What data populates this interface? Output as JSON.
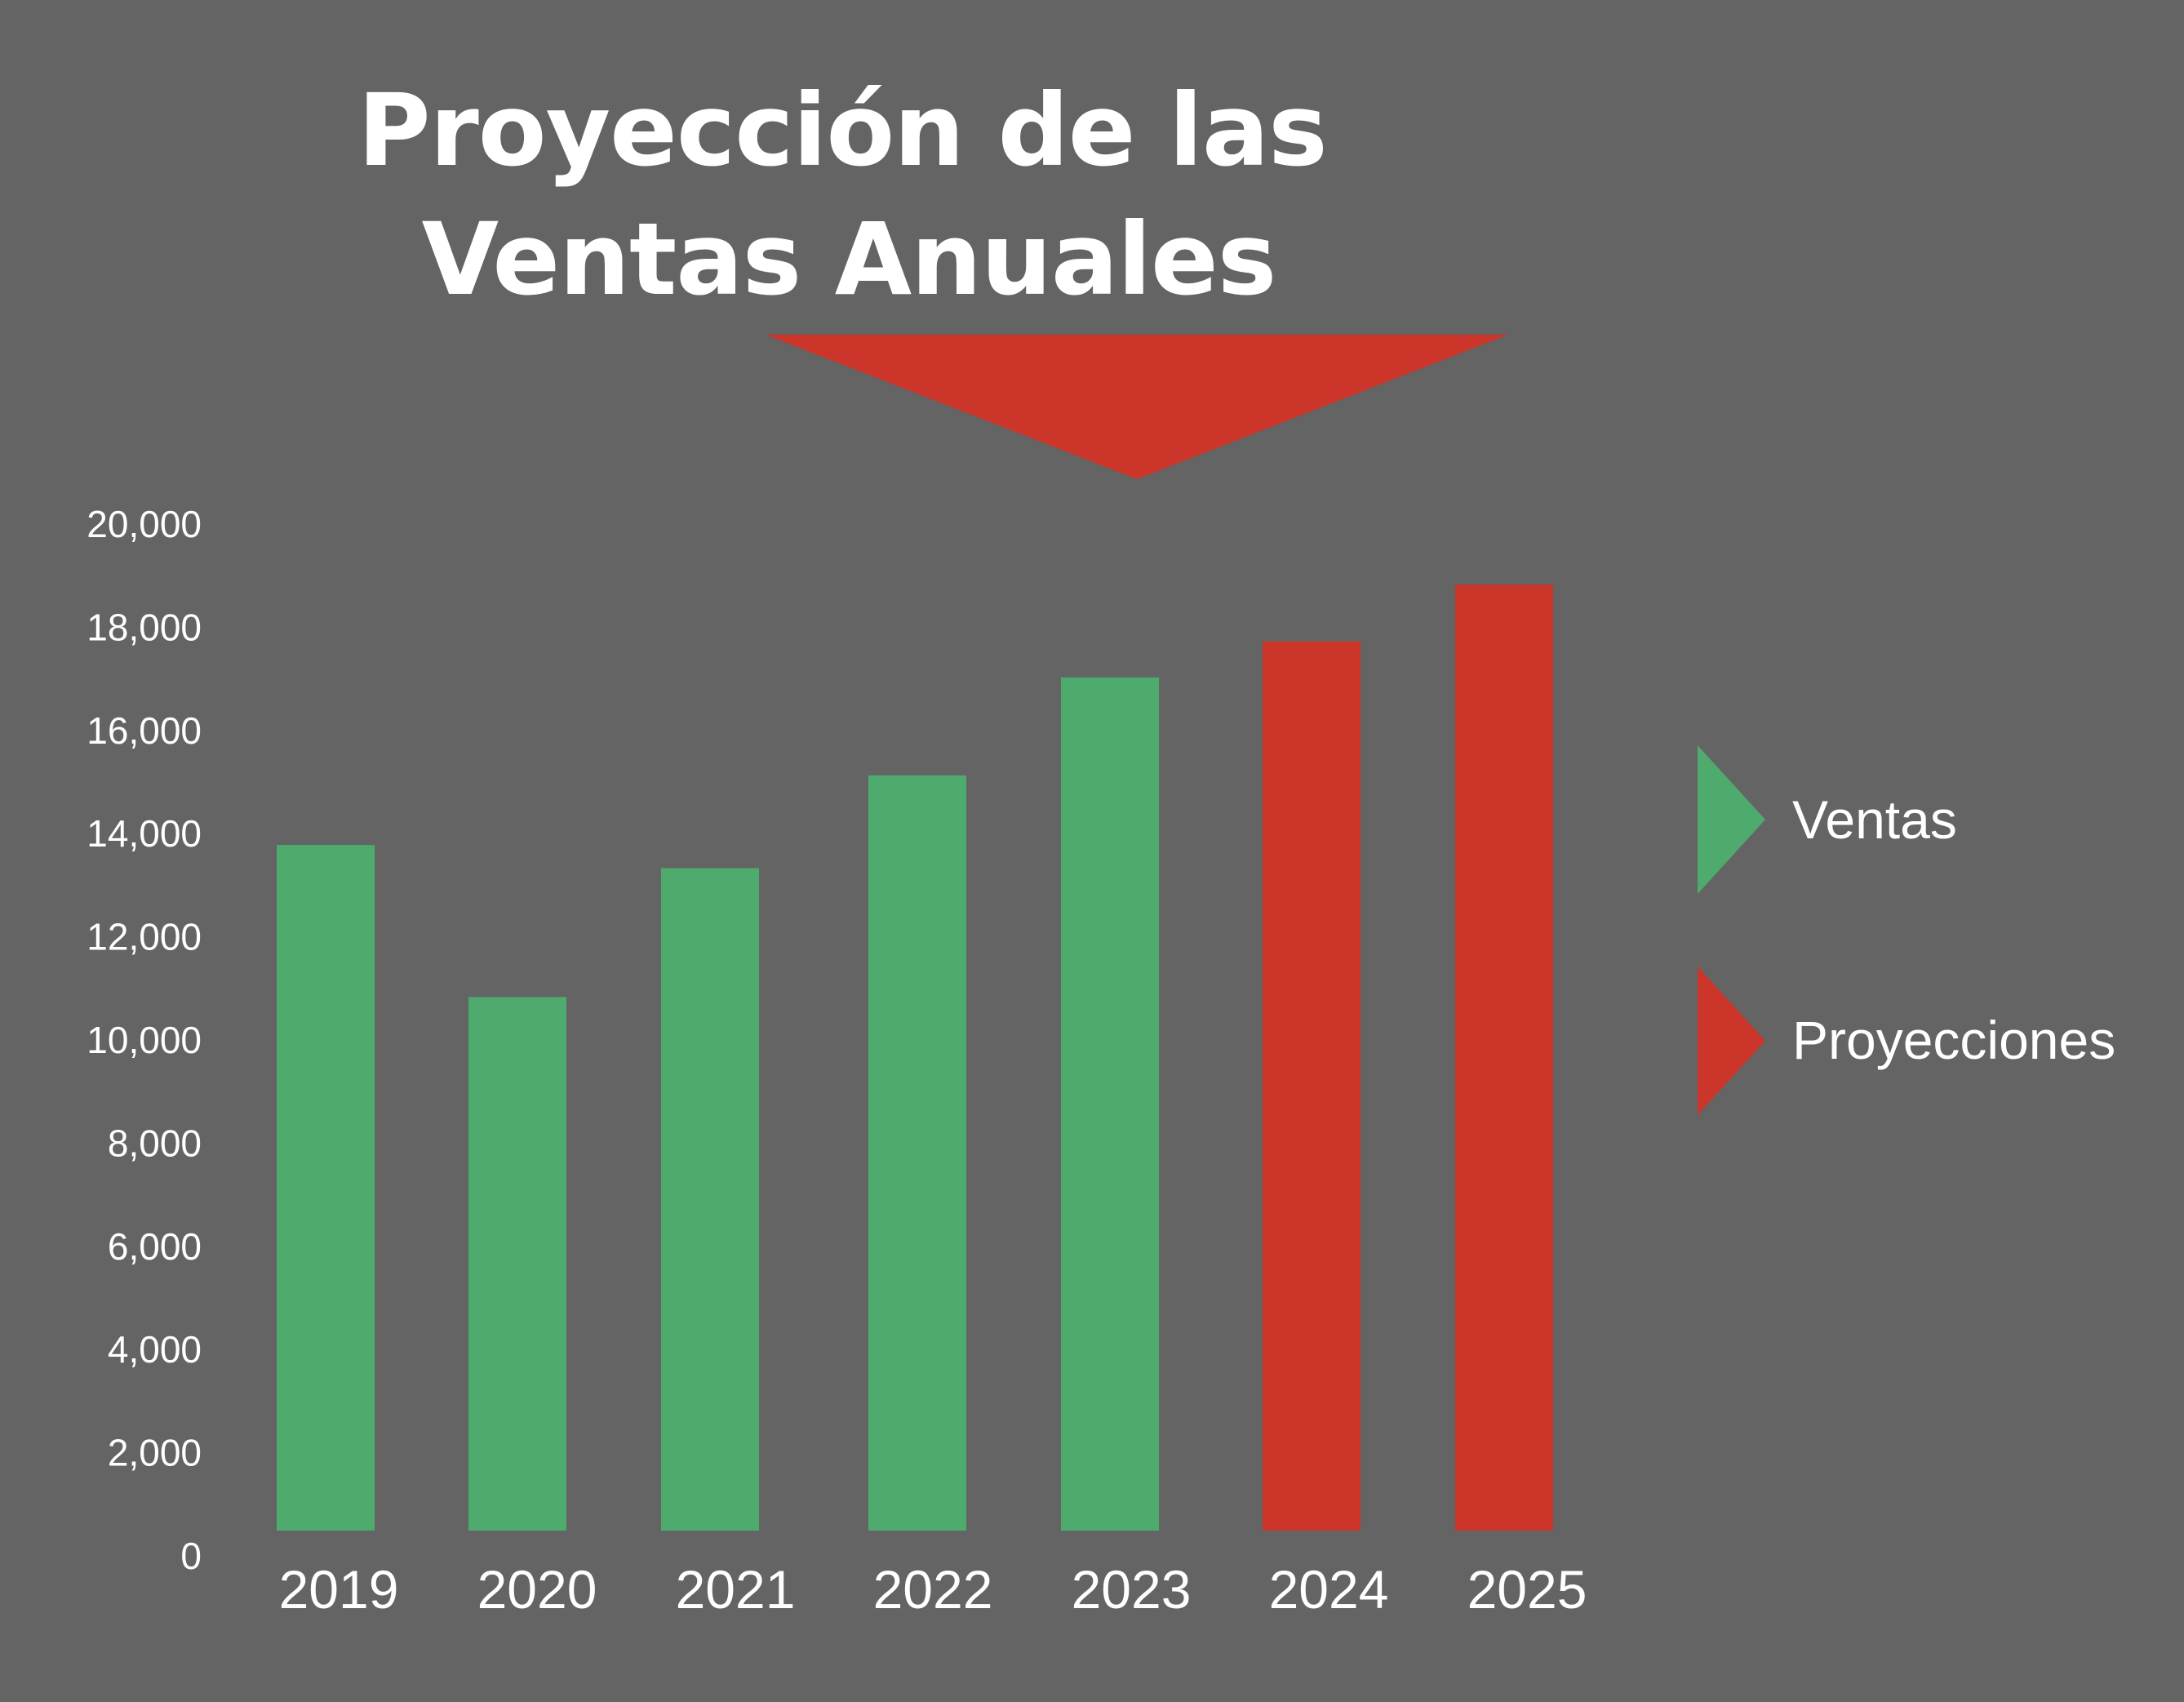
{
  "colors": {
    "background": "#646464",
    "ventas": "#4eab6d",
    "proyecciones": "#cc3529",
    "text": "#ffffff"
  },
  "chart_data": {
    "type": "bar",
    "title_lines": [
      "Proyección de las",
      "Ventas Anuales"
    ],
    "title_arrow_icon": "down-triangle-icon",
    "categories": [
      "2019",
      "2020",
      "2021",
      "2022",
      "2023",
      "2024",
      "2025"
    ],
    "y_tick_labels": [
      "0",
      "2,000",
      "4,000",
      "6,000",
      "8,000",
      "10,000",
      "12,000",
      "14,000",
      "16,000",
      "18,000",
      "20,000"
    ],
    "y_tick_values": [
      0,
      2000,
      4000,
      6000,
      8000,
      10000,
      12000,
      14000,
      16000,
      18000,
      20000
    ],
    "ylim": [
      0,
      20000
    ],
    "grid": false,
    "series": [
      {
        "name": "Ventas",
        "color": "#4eab6d",
        "values": [
          13300,
          10350,
          12850,
          14650,
          16550,
          null,
          null
        ]
      },
      {
        "name": "Proyecciones",
        "color": "#cc3529",
        "values": [
          null,
          null,
          null,
          null,
          null,
          17250,
          18350
        ]
      }
    ],
    "legend": {
      "position": "right",
      "items": [
        {
          "label": "Ventas",
          "color": "#4eab6d",
          "icon": "right-triangle-icon"
        },
        {
          "label": "Proyecciones",
          "color": "#cc3529",
          "icon": "right-triangle-icon"
        }
      ]
    }
  }
}
